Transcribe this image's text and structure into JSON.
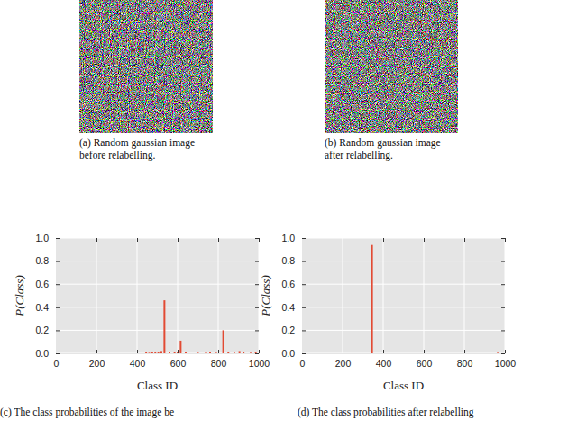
{
  "images": [
    {
      "caption": [
        "(a) Random gaussian image",
        "before relabelling."
      ]
    },
    {
      "caption": [
        "(b) Random gaussian image",
        "after relabelling."
      ]
    }
  ],
  "chart_data": [
    {
      "type": "bar",
      "x": [
        445,
        460,
        475,
        490,
        505,
        520,
        535,
        560,
        585,
        600,
        615,
        640,
        700,
        740,
        760,
        790,
        825,
        850,
        880,
        905,
        925,
        960,
        985
      ],
      "values": [
        0.01,
        0.005,
        0.015,
        0.01,
        0.01,
        0.02,
        0.46,
        0.01,
        0.01,
        0.015,
        0.11,
        0.01,
        0.005,
        0.015,
        0.01,
        0.005,
        0.2,
        0.01,
        0.005,
        0.02,
        0.01,
        0.005,
        0.01
      ],
      "color": "#e24a33",
      "xlim": [
        0,
        1000
      ],
      "xticks": [
        0,
        200,
        400,
        600,
        800,
        1000
      ],
      "ylim": [
        0,
        1
      ],
      "yticks": [
        {
          "value": 0,
          "label": "0.0"
        },
        {
          "value": 0.2,
          "label": "0.2"
        },
        {
          "value": 0.4,
          "label": "0.4"
        },
        {
          "value": 0.6,
          "label": "0.6"
        },
        {
          "value": 0.8,
          "label": "0.8"
        },
        {
          "value": 1,
          "label": "1.0"
        }
      ],
      "xlabel": "Class ID",
      "ylabel": "P(Class)",
      "grid": true,
      "caption": "(c) The class probabilities of the image be"
    },
    {
      "type": "bar",
      "x": [
        345,
        965
      ],
      "values": [
        0.94,
        0.005
      ],
      "color": "#e24a33",
      "xlim": [
        0,
        1000
      ],
      "xticks": [
        0,
        200,
        400,
        600,
        800,
        1000
      ],
      "ylim": [
        0,
        1
      ],
      "yticks": [
        {
          "value": 0,
          "label": "0.0"
        },
        {
          "value": 0.2,
          "label": "0.2"
        },
        {
          "value": 0.4,
          "label": "0.4"
        },
        {
          "value": 0.6,
          "label": "0.6"
        },
        {
          "value": 0.8,
          "label": "0.8"
        },
        {
          "value": 1,
          "label": "1.0"
        }
      ],
      "xlabel": "Class ID",
      "ylabel": "P(Class)",
      "grid": true,
      "caption": "(d) The class probabilities after relabelling"
    }
  ]
}
